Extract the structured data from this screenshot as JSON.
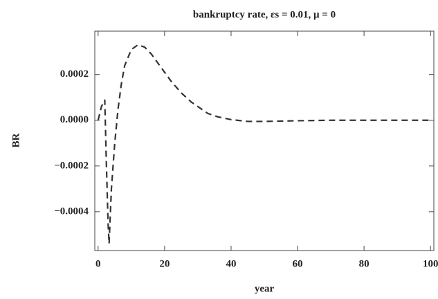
{
  "chart_data": {
    "type": "line",
    "title": "bankruptcy rate, εs = 0.01, μ = 0",
    "x_label": "year",
    "y_label": "BR",
    "x": [
      0,
      1,
      2,
      2.5,
      3,
      3.3,
      4,
      5,
      6,
      7,
      8,
      10,
      12,
      14,
      16,
      18,
      20,
      22,
      25,
      28,
      30,
      33,
      36,
      40,
      45,
      50,
      60,
      70,
      80,
      90,
      100
    ],
    "series": [
      {
        "color": "#333333",
        "values": [
          0,
          6e-05,
          9e-05,
          -0.0002,
          -0.00045,
          -0.00054,
          -0.0003,
          -0.0001,
          5e-05,
          0.00016,
          0.00024,
          0.00031,
          0.00033,
          0.00032,
          0.00029,
          0.00025,
          0.00021,
          0.00017,
          0.00012,
          8e-05,
          6e-05,
          3e-05,
          1.5e-05,
          3e-06,
          -5e-06,
          -5e-06,
          -2e-06,
          0,
          0,
          0,
          0
        ]
      }
    ],
    "xlim": [
      -1,
      101
    ],
    "ylim": [
      -0.00057,
      0.00039
    ],
    "xticks": [
      0,
      20,
      40,
      60,
      80,
      100
    ],
    "yticks": [
      {
        "value": 0.0002,
        "label": "0.0002"
      },
      {
        "value": 0,
        "label": "0.0000"
      },
      {
        "value": -0.0002,
        "label": "−0.0002"
      },
      {
        "value": -0.0004,
        "label": "−0.0004"
      }
    ]
  }
}
